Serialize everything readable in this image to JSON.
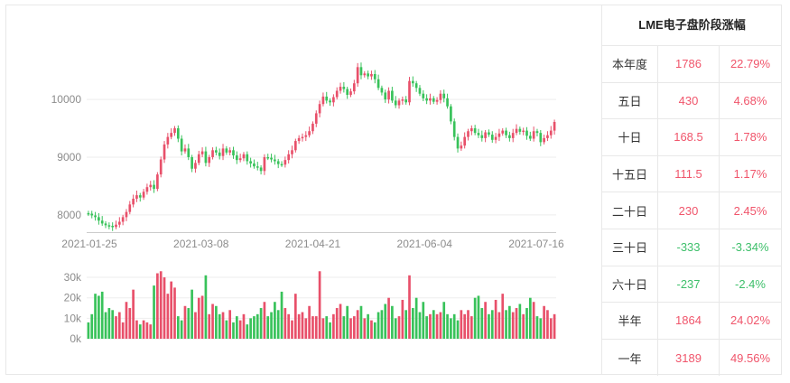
{
  "colors": {
    "up": "#e8506a",
    "down": "#38c25a",
    "grid": "#eeeeee",
    "axis": "#cccccc"
  },
  "chart_data": [
    {
      "type": "candlestick",
      "xlabel": "",
      "ylabel": "",
      "ylim": [
        7700,
        10800
      ],
      "yticks": [
        8000,
        9000,
        10000
      ],
      "x_ticks": [
        "2021-01-25",
        "2021-03-08",
        "2021-04-21",
        "2021-06-04",
        "2021-07-16"
      ],
      "grid": true,
      "closes": [
        8020,
        7990,
        7960,
        7900,
        7850,
        7820,
        7810,
        7790,
        7830,
        7880,
        7960,
        8050,
        8180,
        8280,
        8340,
        8300,
        8400,
        8480,
        8520,
        8450,
        8700,
        8960,
        9220,
        9350,
        9420,
        9500,
        9320,
        9100,
        9150,
        9000,
        8800,
        8900,
        9050,
        9100,
        8900,
        9000,
        9120,
        9080,
        9020,
        9150,
        9080,
        9120,
        9030,
        8950,
        8980,
        9050,
        8930,
        8890,
        8840,
        8820,
        8760,
        9000,
        8990,
        8960,
        8930,
        8880,
        8870,
        8950,
        9050,
        9120,
        9280,
        9330,
        9350,
        9380,
        9450,
        9580,
        9760,
        9920,
        10050,
        9980,
        9950,
        10040,
        10150,
        10220,
        10180,
        10080,
        10140,
        10280,
        10560,
        10420,
        10450,
        10400,
        10440,
        10350,
        10200,
        10120,
        10000,
        10150,
        9980,
        9900,
        9980,
        10000,
        9950,
        10320,
        10280,
        10200,
        10100,
        10020,
        9980,
        10020,
        9960,
        9990,
        10100,
        10020,
        9880,
        9620,
        9350,
        9150,
        9200,
        9350,
        9450,
        9500,
        9420,
        9380,
        9330,
        9430,
        9390,
        9300,
        9350,
        9410,
        9460,
        9380,
        9330,
        9420,
        9490,
        9440,
        9460,
        9370,
        9320,
        9450,
        9420,
        9260,
        9330,
        9380,
        9460,
        9610
      ],
      "volumes": [
        8000,
        12000,
        22000,
        21000,
        23000,
        13000,
        15000,
        14000,
        11000,
        13000,
        8000,
        18000,
        15000,
        24000,
        9000,
        7000,
        9000,
        8000,
        7000,
        26000,
        32000,
        33000,
        30000,
        22000,
        28000,
        25000,
        11000,
        9000,
        16000,
        15000,
        24000,
        13000,
        20000,
        21000,
        31000,
        12000,
        17000,
        16000,
        12000,
        13000,
        9000,
        14000,
        8000,
        11000,
        9000,
        12000,
        7000,
        10000,
        11000,
        12000,
        15000,
        18000,
        11000,
        13000,
        18000,
        14000,
        23000,
        15000,
        12000,
        9000,
        22000,
        12000,
        13000,
        10000,
        16000,
        11000,
        11000,
        33000,
        10000,
        11000,
        8000,
        12000,
        15000,
        17000,
        11000,
        16000,
        10000,
        11000,
        14000,
        16000,
        10000,
        12000,
        9000,
        8000,
        13000,
        14000,
        17000,
        20000,
        16000,
        10000,
        11000,
        19000,
        14000,
        31000,
        15000,
        20000,
        13000,
        18000,
        11000,
        12000,
        14000,
        12000,
        13000,
        18000,
        12000,
        10000,
        12000,
        9000,
        14000,
        12000,
        14000,
        11000,
        20000,
        21000,
        15000,
        18000,
        12000,
        14000,
        19000,
        13000,
        22000,
        14000,
        16000,
        13000,
        15000,
        17000,
        12000,
        15000,
        20000,
        18000,
        11000,
        10000,
        16000,
        14000,
        10000,
        12000
      ],
      "volume_yticks": [
        "0k",
        "10k",
        "20k",
        "30k"
      ],
      "volume_ylim": [
        0,
        34000
      ]
    },
    {
      "type": "table",
      "title": "LME电子盘阶段涨幅",
      "rows": [
        {
          "period": "本年度",
          "change": "1786",
          "pct": "22.79%",
          "dir": "up"
        },
        {
          "period": "五日",
          "change": "430",
          "pct": "4.68%",
          "dir": "up"
        },
        {
          "period": "十日",
          "change": "168.5",
          "pct": "1.78%",
          "dir": "up"
        },
        {
          "period": "十五日",
          "change": "111.5",
          "pct": "1.17%",
          "dir": "up"
        },
        {
          "period": "二十日",
          "change": "230",
          "pct": "2.45%",
          "dir": "up"
        },
        {
          "period": "三十日",
          "change": "-333",
          "pct": "-3.34%",
          "dir": "down"
        },
        {
          "period": "六十日",
          "change": "-237",
          "pct": "-2.4%",
          "dir": "down"
        },
        {
          "period": "半年",
          "change": "1864",
          "pct": "24.02%",
          "dir": "up"
        },
        {
          "period": "一年",
          "change": "3189",
          "pct": "49.56%",
          "dir": "up"
        }
      ]
    }
  ]
}
